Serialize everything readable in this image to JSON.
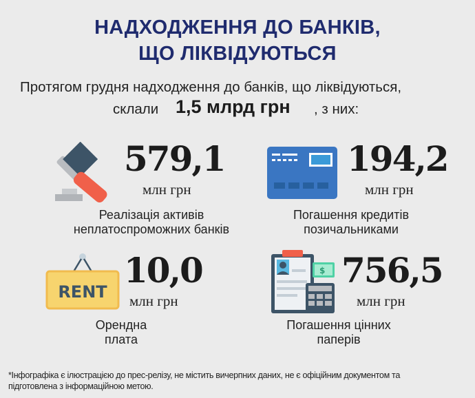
{
  "title": {
    "line1": "НАДХОДЖЕННЯ ДО БАНКІВ,",
    "line2": "ЩО ЛІКВІДУЮТЬСЯ"
  },
  "intro": {
    "line1": "Протягом грудня надходження до банків, що ліквідуються,",
    "prefix": "склали",
    "total": "1,5 млрд грн",
    "suffix": ", з них:"
  },
  "items": [
    {
      "value": "579,1",
      "unit": "млн грн",
      "label1": "Реалізація активів",
      "label2": "неплатоспроможних банків",
      "icon": "gavel-icon"
    },
    {
      "value": "194,2",
      "unit": "млн грн",
      "label1": "Погашення кредитів",
      "label2": "позичальниками",
      "icon": "credit-card-icon"
    },
    {
      "value": "10,0",
      "unit": "млн грн",
      "label1": "Орендна",
      "label2": "плата",
      "icon": "rent-sign-icon",
      "sign_text": "RENT"
    },
    {
      "value": "756,5",
      "unit": "млн грн",
      "label1": "Погашення цінних",
      "label2": "паперів",
      "icon": "securities-clipboard-icon"
    }
  ],
  "footnote": {
    "line1": "*Інфографіка є ілюстрацією до прес-релізу,  не містить вичерпних даних, не є офіційним документом та",
    "line2": "підготовлена з інформаційною метою."
  },
  "colors": {
    "title": "#1f2b6e",
    "background": "#ebebeb",
    "card_blue": "#3a76c2",
    "gavel_red": "#f0604a",
    "rent_yellow": "#f7d46e"
  }
}
